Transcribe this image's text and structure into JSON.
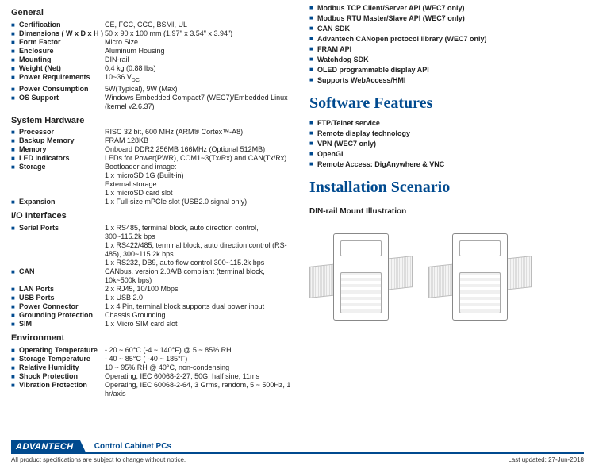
{
  "left": {
    "general": {
      "title": "General",
      "rows": [
        {
          "label": "Certification",
          "value": "CE, FCC, CCC, BSMI, UL"
        },
        {
          "label": "Dimensions ( W x D x H )",
          "value": "50 x 90 x 100 mm (1.97\" x 3.54\" x 3.94\")"
        },
        {
          "label": "Form Factor",
          "value": "Micro Size"
        },
        {
          "label": "Enclosure",
          "value": "Aluminum Housing"
        },
        {
          "label": "Mounting",
          "value": "DIN-rail"
        },
        {
          "label": "Weight (Net)",
          "value": "0.4 kg (0.88 lbs)"
        },
        {
          "label": "Power Requirements",
          "value": "10~36 V<sub>DC</sub>"
        },
        {
          "label": "Power Consumption",
          "value": "5W(Typical), 9W (Max)"
        },
        {
          "label": "OS Support",
          "value": "Windows Embedded Compact7 (WEC7)/Embedded Linux (kernel v2.6.37)"
        }
      ]
    },
    "hw": {
      "title": "System Hardware",
      "rows": [
        {
          "label": "Processor",
          "value": "RISC 32 bit, 600 MHz (ARM® Cortex™-A8)"
        },
        {
          "label": "Backup Memory",
          "value": "FRAM 128KB"
        },
        {
          "label": "Memory",
          "value": "Onboard DDR2 256MB 166MHz (Optional 512MB)"
        },
        {
          "label": "LED Indicators",
          "value": "LEDs for Power(PWR), COM1~3(Tx/Rx) and CAN(Tx/Rx)"
        },
        {
          "label": "Storage",
          "value": "Bootloader and image:\n1 x microSD 1G (Built-in)\nExternal storage:\n1 x microSD card slot"
        },
        {
          "label": "Expansion",
          "value": "1 x Full-size mPCIe slot (USB2.0 signal only)"
        }
      ]
    },
    "io": {
      "title": "I/O Interfaces",
      "rows": [
        {
          "label": "Serial Ports",
          "value": "1 x RS485, terminal block, auto direction control, 300~115.2k bps\n1 x RS422/485, terminal block, auto direction control (RS-485), 300~115.2k bps\n1 x RS232, DB9, auto flow control 300~115.2k bps"
        },
        {
          "label": "CAN",
          "value": "CANbus. version 2.0A/B compliant (terminal block, 10k~500k bps)"
        },
        {
          "label": "LAN Ports",
          "value": "2 x RJ45, 10/100 Mbps"
        },
        {
          "label": "USB Ports",
          "value": "1 x USB 2.0"
        },
        {
          "label": "Power Connector",
          "value": "1 x 4 Pin, terminal block supports dual power input"
        },
        {
          "label": "Grounding Protection",
          "value": "Chassis Grounding"
        },
        {
          "label": "SIM",
          "value": "1 x Micro SIM card slot"
        }
      ]
    },
    "env": {
      "title": "Environment",
      "rows": [
        {
          "label": "Operating Temperature",
          "value": "- 20 ~ 60°C (-4 ~ 140°F) @ 5 ~ 85% RH"
        },
        {
          "label": "Storage Temperature",
          "value": "- 40 ~ 85°C ( -40 ~ 185°F)"
        },
        {
          "label": "Relative Humidity",
          "value": "10 ~ 95% RH @ 40°C, non-condensing"
        },
        {
          "label": "Shock Protection",
          "value": "Operating, IEC 60068-2-27, 50G, half sine, 11ms"
        },
        {
          "label": "Vibration Protection",
          "value": "Operating, IEC 60068-2-64, 3 Grms, random, 5 ~ 500Hz, 1 hr/axis"
        }
      ]
    }
  },
  "right": {
    "apis": [
      "Modbus TCP Client/Server API (WEC7 only)",
      "Modbus RTU Master/Slave API (WEC7 only)",
      "CAN SDK",
      "Advantech CANopen protocol library (WEC7 only)",
      "FRAM API",
      "Watchdog SDK",
      "OLED programmable display API",
      "Supports WebAccess/HMI"
    ],
    "sw_title": "Software Features",
    "sw": [
      "FTP/Telnet service",
      "Remote display technology",
      "VPN (WEC7 only)",
      "OpenGL",
      "Remote Access: DigAnywhere & VNC"
    ],
    "inst_title": "Installation Scenario",
    "inst_sub": "DIN-rail Mount Illustration"
  },
  "footer": {
    "brand": "ADVANTECH",
    "category": "Control Cabinet PCs",
    "note": "All product specifications are subject to change without notice.",
    "date": "Last updated: 27-Jun-2018"
  }
}
